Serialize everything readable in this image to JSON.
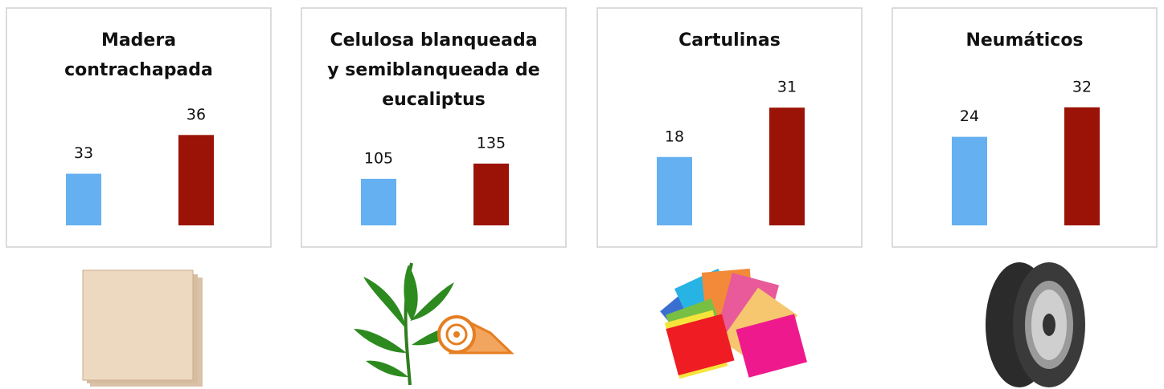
{
  "chart_data": [
    {
      "type": "bar",
      "title": [
        "Madera",
        "contrachapada"
      ],
      "values": [
        33,
        36
      ],
      "colors": [
        "#64b0f0",
        "#9b1306"
      ],
      "ylim": [
        29,
        39
      ]
    },
    {
      "type": "bar",
      "title": [
        "Celulosa blanqueada",
        "y semiblanqueada de",
        "eucaliptus"
      ],
      "values": [
        105,
        135
      ],
      "colors": [
        "#64b0f0",
        "#9b1306"
      ],
      "ylim": [
        13,
        268
      ]
    },
    {
      "type": "bar",
      "title": [
        "Cartulinas"
      ],
      "values": [
        18,
        31
      ],
      "colors": [
        "#64b0f0",
        "#9b1306"
      ],
      "ylim": [
        0,
        34
      ]
    },
    {
      "type": "bar",
      "title": [
        "Neumáticos"
      ],
      "values": [
        24,
        32
      ],
      "colors": [
        "#64b0f0",
        "#9b1306"
      ],
      "ylim": [
        0,
        35
      ]
    }
  ]
}
